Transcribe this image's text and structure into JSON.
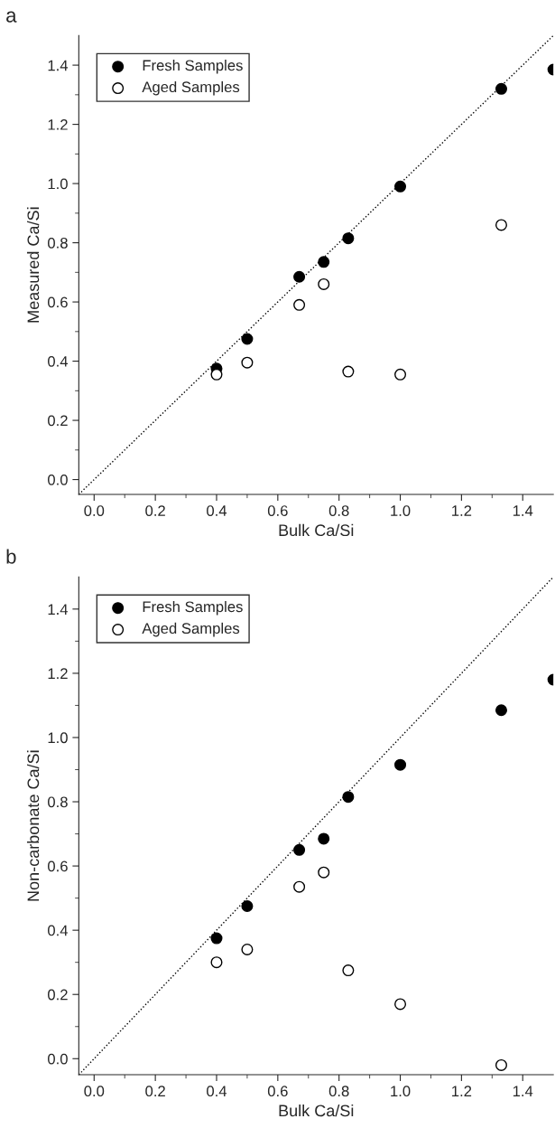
{
  "chart_data": [
    {
      "type": "scatter",
      "title": "a",
      "xlabel": "Bulk Ca/Si",
      "ylabel": "Measured Ca/Si",
      "xlim": [
        -0.05,
        1.5
      ],
      "ylim": [
        -0.05,
        1.5
      ],
      "xticks": [
        {
          "value": 0,
          "label": "0.0"
        },
        {
          "value": 0.1,
          "label": null
        },
        0.2,
        {
          "value": 0.3,
          "label": null
        },
        0.4,
        {
          "value": 0.5,
          "label": null
        },
        0.6,
        {
          "value": 0.7,
          "label": null
        },
        0.8,
        {
          "value": 0.9,
          "label": null
        },
        {
          "value": 1,
          "label": "1.0"
        },
        {
          "value": 1.1,
          "label": null
        },
        1.2,
        {
          "value": 1.3,
          "label": null
        },
        1.4
      ],
      "yticks": [
        {
          "value": 0,
          "label": "0.0"
        },
        {
          "value": 0.1,
          "label": null
        },
        0.2,
        {
          "value": 0.3,
          "label": null
        },
        0.4,
        {
          "value": 0.5,
          "label": null
        },
        0.6,
        {
          "value": 0.7,
          "label": null
        },
        0.8,
        {
          "value": 0.9,
          "label": null
        },
        {
          "value": 1,
          "label": "1.0"
        },
        {
          "value": 1.1,
          "label": null
        },
        1.2,
        {
          "value": 1.3,
          "label": null
        },
        1.4
      ],
      "grid": false,
      "legend": "top left",
      "series": [
        {
          "name": "Fresh Samples",
          "color": "#000000",
          "marker": "circle",
          "x": [
            0.4,
            0.5,
            0.67,
            0.75,
            0.83,
            1.0,
            1.33,
            1.5
          ],
          "values": [
            0.375,
            0.475,
            0.685,
            0.735,
            0.815,
            0.99,
            1.32,
            1.385
          ]
        },
        {
          "name": "Aged Samples",
          "color": "#ffffff",
          "marker": "circle",
          "x": [
            0.4,
            0.5,
            0.67,
            0.75,
            0.83,
            1.0,
            1.33
          ],
          "values": [
            0.355,
            0.395,
            0.59,
            0.66,
            0.365,
            0.355,
            0.86
          ]
        },
        {
          "type": "line",
          "line_style": "dotted",
          "color": "#000000",
          "x": [
            -0.05,
            1.5
          ],
          "values": [
            -0.05,
            1.5
          ]
        }
      ]
    },
    {
      "type": "scatter",
      "title": "b",
      "xlabel": "Bulk Ca/Si",
      "ylabel": "Non-carbonate Ca/Si",
      "xlim": [
        -0.05,
        1.5
      ],
      "ylim": [
        -0.05,
        1.5
      ],
      "xticks": [
        {
          "value": 0,
          "label": "0.0"
        },
        {
          "value": 0.1,
          "label": null
        },
        0.2,
        {
          "value": 0.3,
          "label": null
        },
        0.4,
        {
          "value": 0.5,
          "label": null
        },
        0.6,
        {
          "value": 0.7,
          "label": null
        },
        0.8,
        {
          "value": 0.9,
          "label": null
        },
        {
          "value": 1,
          "label": "1.0"
        },
        {
          "value": 1.1,
          "label": null
        },
        1.2,
        {
          "value": 1.3,
          "label": null
        },
        1.4
      ],
      "yticks": [
        {
          "value": 0,
          "label": "0.0"
        },
        {
          "value": 0.1,
          "label": null
        },
        0.2,
        {
          "value": 0.3,
          "label": null
        },
        0.4,
        {
          "value": 0.5,
          "label": null
        },
        0.6,
        {
          "value": 0.7,
          "label": null
        },
        0.8,
        {
          "value": 0.9,
          "label": null
        },
        {
          "value": 1,
          "label": "1.0"
        },
        {
          "value": 1.1,
          "label": null
        },
        1.2,
        {
          "value": 1.3,
          "label": null
        },
        1.4
      ],
      "grid": false,
      "legend": "top left",
      "series": [
        {
          "name": "Fresh Samples",
          "color": "#000000",
          "marker": "circle",
          "x": [
            0.4,
            0.5,
            0.67,
            0.75,
            0.83,
            1.0,
            1.33,
            1.5
          ],
          "values": [
            0.375,
            0.475,
            0.65,
            0.685,
            0.815,
            0.915,
            1.085,
            1.18
          ]
        },
        {
          "name": "Aged Samples",
          "color": "#ffffff",
          "marker": "circle",
          "x": [
            0.4,
            0.5,
            0.67,
            0.75,
            0.83,
            1.0,
            1.33
          ],
          "values": [
            0.3,
            0.34,
            0.535,
            0.58,
            0.275,
            0.17,
            -0.02
          ]
        },
        {
          "type": "line",
          "line_style": "dotted",
          "color": "#000000",
          "x": [
            -0.05,
            1.5
          ],
          "values": [
            -0.05,
            1.5
          ]
        }
      ]
    }
  ]
}
